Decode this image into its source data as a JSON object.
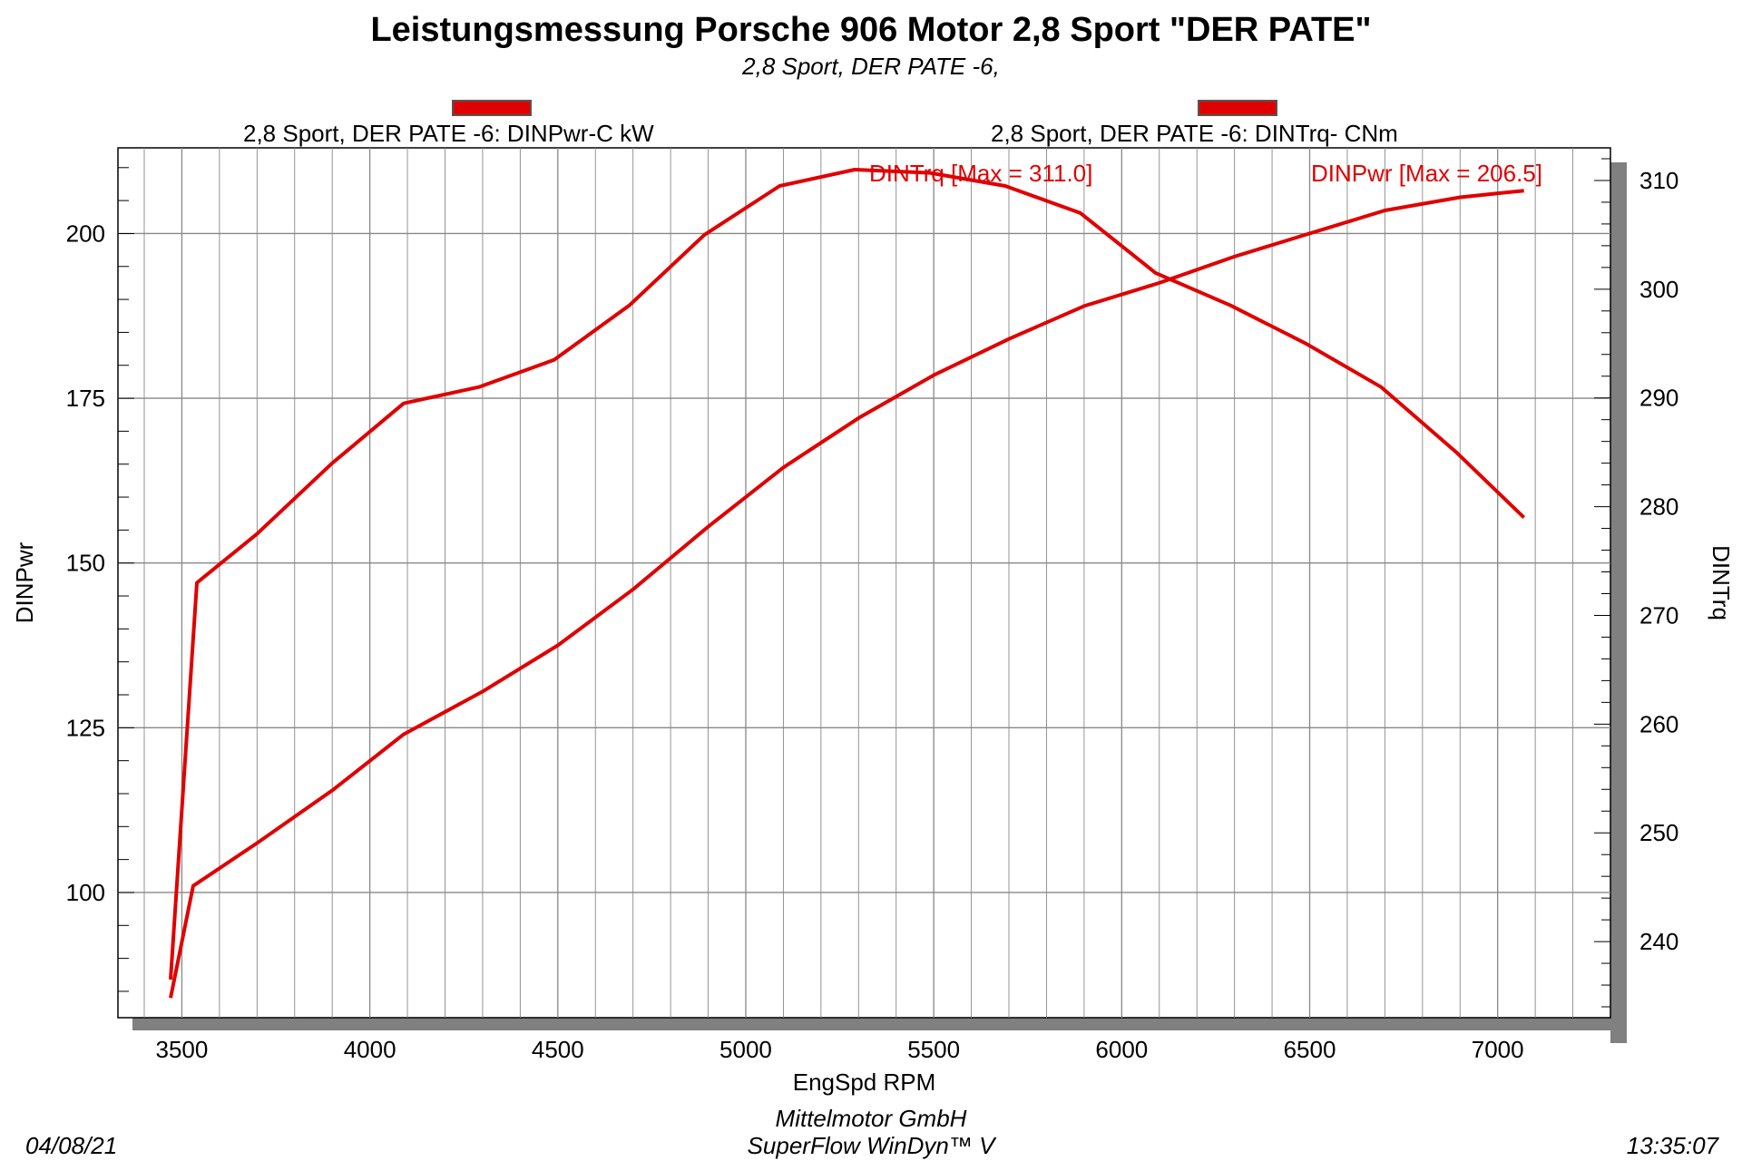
{
  "title": "Leistungsmessung Porsche 906 Motor 2,8 Sport \"DER PATE\"",
  "subtitle": "2,8 Sport, DER PATE -6,",
  "legend": {
    "left_label": "2,8 Sport, DER PATE -6: DINPwr-C kW",
    "right_label": "2,8 Sport, DER PATE -6: DINTrq- CNm"
  },
  "annotations": {
    "trq_max": "DINTrq [Max = 311.0]",
    "pwr_max": "DINPwr [Max = 206.5]"
  },
  "footer": {
    "date": "04/08/21",
    "company": "Mittelmotor GmbH",
    "software": "SuperFlow WinDyn™ V",
    "time": "13:35:07"
  },
  "colors": {
    "series": "#e00000",
    "grid": "#888888",
    "shadow": "#808080"
  },
  "chart_data": {
    "type": "line",
    "xlabel": "EngSpd  RPM",
    "ylabel_left": "DINPwr",
    "ylabel_right": "DINTrq",
    "xlim": [
      3330,
      7300
    ],
    "ylim_left": [
      81,
      213
    ],
    "ylim_right": [
      233,
      313
    ],
    "x_ticks": [
      3500,
      4000,
      4500,
      5000,
      5500,
      6000,
      6500,
      7000
    ],
    "y_left_ticks": [
      100,
      125,
      150,
      175,
      200
    ],
    "y_right_ticks": [
      240,
      250,
      260,
      270,
      280,
      290,
      300,
      310
    ],
    "grid": true,
    "series": [
      {
        "name": "DINPwr",
        "axis": "left",
        "x": [
          3470,
          3530,
          3700,
          3900,
          4090,
          4300,
          4500,
          4700,
          4900,
          5100,
          5300,
          5500,
          5700,
          5900,
          6100,
          6300,
          6500,
          6700,
          6900,
          7070
        ],
        "y": [
          84,
          101,
          107.5,
          115.5,
          124,
          130.5,
          137.5,
          146,
          155.5,
          164.5,
          172,
          178.5,
          184,
          189,
          192.5,
          196.5,
          200,
          203.5,
          205.5,
          206.5
        ]
      },
      {
        "name": "DINTrq",
        "axis": "right",
        "x": [
          3470,
          3540,
          3700,
          3900,
          4090,
          4290,
          4490,
          4690,
          4890,
          5090,
          5290,
          5490,
          5690,
          5890,
          6090,
          6290,
          6490,
          6690,
          6890,
          7070
        ],
        "y": [
          236.5,
          273,
          277.5,
          284,
          289.5,
          291,
          293.5,
          298.5,
          305,
          309.5,
          311,
          310.7,
          309.5,
          307,
          301.5,
          298.5,
          295,
          291,
          285,
          279
        ]
      }
    ]
  }
}
